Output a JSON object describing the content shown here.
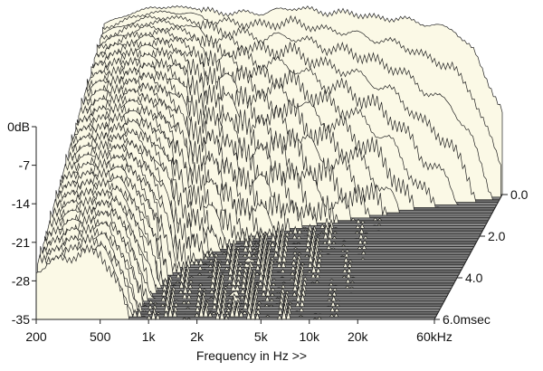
{
  "chart_data": {
    "type": "area",
    "subtype": "cumulative-spectral-decay (waterfall)",
    "title": "",
    "xlabel": "Frequency in Hz >>",
    "ylabel": "",
    "zlabel": "",
    "x_scale": "log",
    "x_ticks": [
      "200",
      "500",
      "1k",
      "2k",
      "5k",
      "10k",
      "20k",
      "60kHz"
    ],
    "x_tick_values": [
      200,
      500,
      1000,
      2000,
      5000,
      10000,
      20000,
      60000
    ],
    "xlim": [
      200,
      60000
    ],
    "y_ticks": [
      "0dB",
      "-7",
      "-14",
      "-21",
      "-28",
      "-35"
    ],
    "y_tick_values": [
      0,
      -7,
      -14,
      -21,
      -28,
      -35
    ],
    "ylim": [
      -35,
      0
    ],
    "z_ticks": [
      "0.0",
      "2.0",
      "4.0",
      "6.0msec"
    ],
    "z_tick_values": [
      0,
      2,
      4,
      6
    ],
    "zlim": [
      0,
      6
    ],
    "grid": false,
    "legend": "none",
    "colors": {
      "surface": "#fbf9e6",
      "line": "#222222",
      "floor_dark": "#5a5a5a",
      "floor_light": "#a8a8a8"
    },
    "initial_response": {
      "time_ms": 0,
      "freq": [
        200,
        300,
        400,
        500,
        700,
        1000,
        1500,
        2000,
        3000,
        5000,
        7000,
        10000,
        14000,
        20000,
        30000,
        40000,
        60000
      ],
      "level_db": [
        -4,
        -2,
        -1,
        -1,
        -1,
        -2,
        -2,
        -2,
        -1,
        -2,
        -2,
        -3,
        -3,
        -4,
        -5,
        -9,
        -20
      ]
    },
    "decay_profile": {
      "freq": [
        200,
        500,
        1000,
        2000,
        5000,
        10000,
        20000,
        60000
      ],
      "decay_time_ms": [
        6,
        6,
        2.5,
        1.5,
        1,
        0.8,
        0.5,
        0.3
      ]
    }
  }
}
